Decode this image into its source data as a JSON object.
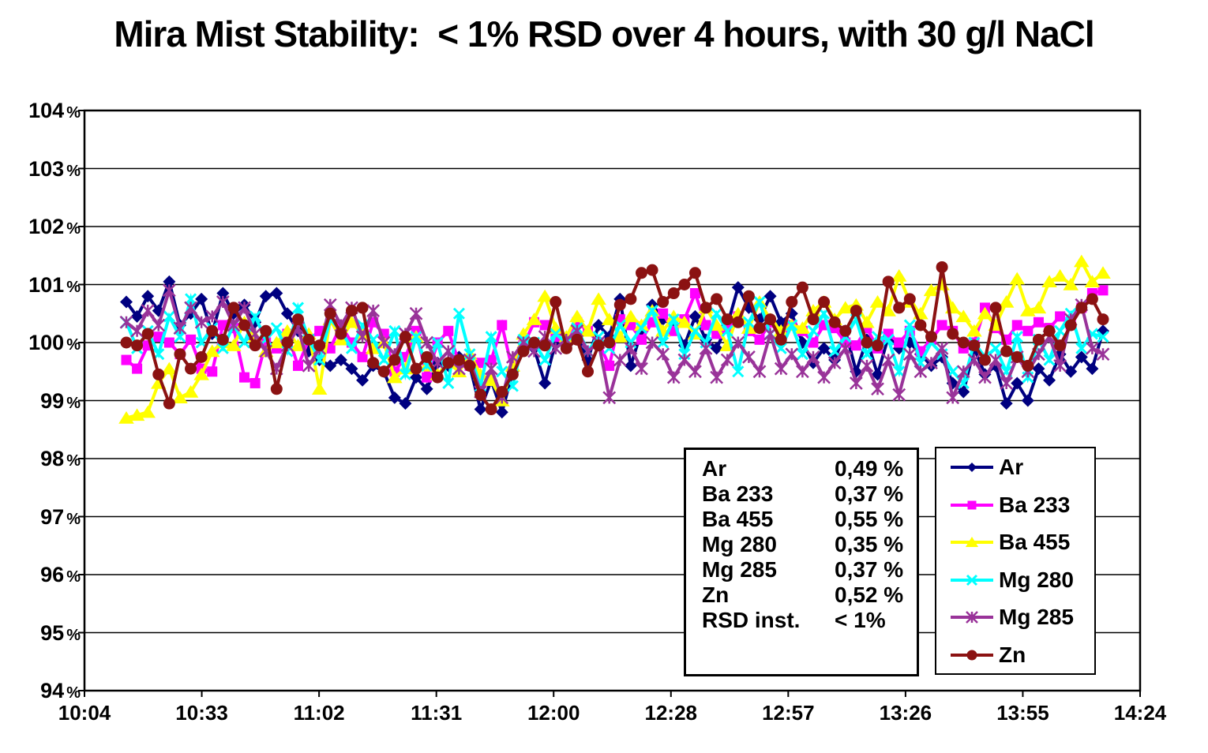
{
  "title": "Mira Mist Stability:  < 1% RSD over 4 hours, with 30 g/l NaCl",
  "stats_box": {
    "rows": [
      {
        "label": "Ar",
        "value": "0,49 %"
      },
      {
        "label": "Ba 233",
        "value": "0,37 %"
      },
      {
        "label": "Ba 455",
        "value": "0,55 %"
      },
      {
        "label": "Mg 280",
        "value": "0,35 %"
      },
      {
        "label": "Mg 285",
        "value": "0,37 %"
      },
      {
        "label": "Zn",
        "value": "0,52 %"
      },
      {
        "label": "RSD inst.",
        "value": "< 1%"
      }
    ]
  },
  "legend": {
    "items": [
      "Ar",
      "Ba 233",
      "Ba 455",
      "Mg 280",
      "Mg 285",
      "Zn"
    ]
  },
  "chart_data": {
    "type": "line",
    "title": "Mira Mist Stability:  < 1% RSD over 4 hours, with 30 g/l NaCl",
    "xlabel": "",
    "ylabel": "",
    "grid": true,
    "legend_position": "inset-right",
    "ylim": [
      94,
      104
    ],
    "y_axis": {
      "unit": "%",
      "tick_labels": [
        "104 %",
        "103 %",
        "102 %",
        "101 %",
        "100 %",
        "99 %",
        "98 %",
        "97 %",
        "96 %",
        "95 %",
        "94 %"
      ]
    },
    "x_axis": {
      "tick_labels": [
        "10:04",
        "10:33",
        "11:02",
        "11:31",
        "12:00",
        "12:28",
        "12:57",
        "13:26",
        "13:55",
        "14:24"
      ],
      "data_start": "10:13",
      "data_end": "14:15"
    },
    "series": [
      {
        "name": "Ar",
        "color": "#000080",
        "marker": "diamond",
        "rsd": "0,49 %",
        "values": [
          100.7,
          100.45,
          100.8,
          100.55,
          101.05,
          100.3,
          100.5,
          100.75,
          100.15,
          100.85,
          100.5,
          100.65,
          100.35,
          100.8,
          100.85,
          100.5,
          100.2,
          99.85,
          99.7,
          99.6,
          99.7,
          99.55,
          99.35,
          99.6,
          99.5,
          99.05,
          98.95,
          99.4,
          99.2,
          99.65,
          99.6,
          99.75,
          99.6,
          98.85,
          99.35,
          98.8,
          99.5,
          100.1,
          99.9,
          99.3,
          100.0,
          99.95,
          100.15,
          99.7,
          100.3,
          100.1,
          100.75,
          99.6,
          100.2,
          100.65,
          100.4,
          100.3,
          99.95,
          100.45,
          100.05,
          99.9,
          100.3,
          100.95,
          100.6,
          100.4,
          100.8,
          100.35,
          100.5,
          100.0,
          99.65,
          99.9,
          99.7,
          100.2,
          99.5,
          100.05,
          99.45,
          100.1,
          99.9,
          100.0,
          99.8,
          99.6,
          99.75,
          99.3,
          99.15,
          99.9,
          99.45,
          99.6,
          98.95,
          99.3,
          99.0,
          99.55,
          99.35,
          99.8,
          99.5,
          99.75,
          99.55,
          100.2
        ]
      },
      {
        "name": "Ba 233",
        "color": "#FF00FF",
        "marker": "square",
        "rsd": "0,37 %",
        "values": [
          99.7,
          99.55,
          99.95,
          100.1,
          100.0,
          99.8,
          100.05,
          99.55,
          99.5,
          100.3,
          100.25,
          99.4,
          99.3,
          100.0,
          99.9,
          100.15,
          99.6,
          100.05,
          100.2,
          99.9,
          100.3,
          100.0,
          99.75,
          100.35,
          100.15,
          99.5,
          99.75,
          100.2,
          99.4,
          100.0,
          100.2,
          99.65,
          99.6,
          99.65,
          99.7,
          100.3,
          99.5,
          99.95,
          100.35,
          100.3,
          100.1,
          99.95,
          100.35,
          100.2,
          100.0,
          99.6,
          100.4,
          100.3,
          100.05,
          100.35,
          100.5,
          100.2,
          100.4,
          100.85,
          100.3,
          100.15,
          100.25,
          100.45,
          100.2,
          100.05,
          100.35,
          100.1,
          100.3,
          100.2,
          100.0,
          100.3,
          100.25,
          100.0,
          99.95,
          100.25,
          99.9,
          100.15,
          100.0,
          100.2,
          99.85,
          100.05,
          100.3,
          100.2,
          99.9,
          100.0,
          100.6,
          100.25,
          100.05,
          100.3,
          100.2,
          100.35,
          100.25,
          100.45,
          100.3,
          100.6,
          100.85,
          100.9
        ]
      },
      {
        "name": "Ba 455",
        "color": "#FFFF00",
        "marker": "triangle",
        "rsd": "0,55 %",
        "values": [
          98.7,
          98.75,
          98.8,
          99.3,
          99.55,
          99.05,
          99.15,
          99.45,
          99.85,
          100.0,
          99.95,
          100.35,
          100.1,
          99.85,
          100.0,
          100.2,
          99.95,
          100.15,
          99.2,
          100.4,
          100.05,
          100.35,
          100.15,
          99.9,
          100.0,
          99.4,
          99.55,
          100.1,
          99.6,
          99.45,
          99.65,
          99.5,
          99.8,
          99.45,
          99.35,
          99.0,
          99.6,
          100.15,
          100.4,
          100.8,
          100.25,
          100.1,
          100.45,
          100.2,
          100.75,
          100.4,
          100.1,
          100.45,
          100.3,
          100.55,
          100.2,
          100.45,
          100.35,
          100.15,
          100.6,
          100.3,
          99.95,
          100.5,
          100.25,
          100.7,
          100.4,
          100.2,
          100.3,
          100.25,
          100.55,
          100.7,
          100.4,
          100.6,
          100.65,
          100.35,
          100.7,
          100.55,
          101.15,
          100.7,
          100.5,
          100.9,
          101.0,
          100.6,
          100.45,
          100.2,
          100.5,
          100.3,
          100.7,
          101.1,
          100.55,
          100.6,
          101.05,
          101.15,
          101.0,
          101.4,
          101.05,
          101.2
        ]
      },
      {
        "name": "Mg 280",
        "color": "#00FFFF",
        "marker": "x",
        "rsd": "0,35 %",
        "values": [
          100.35,
          99.9,
          100.2,
          99.8,
          100.45,
          100.1,
          100.75,
          100.0,
          100.25,
          99.9,
          100.3,
          100.0,
          100.45,
          100.05,
          100.25,
          99.85,
          100.6,
          100.05,
          99.7,
          100.4,
          100.2,
          99.9,
          100.3,
          100.05,
          99.7,
          100.2,
          99.45,
          100.1,
          99.6,
          100.0,
          99.3,
          100.5,
          99.8,
          99.25,
          100.1,
          99.5,
          99.25,
          100.05,
          100.0,
          99.7,
          100.15,
          100.0,
          100.25,
          99.85,
          100.1,
          99.9,
          100.3,
          100.0,
          100.25,
          100.55,
          100.0,
          100.4,
          99.8,
          100.2,
          100.0,
          100.5,
          100.2,
          99.5,
          100.35,
          100.7,
          100.15,
          99.9,
          100.3,
          99.8,
          100.2,
          100.5,
          99.85,
          100.1,
          100.4,
          99.8,
          100.1,
          100.05,
          99.5,
          100.3,
          99.65,
          100.0,
          99.8,
          99.5,
          99.3,
          100.0,
          99.75,
          99.9,
          99.5,
          100.1,
          99.4,
          100.05,
          99.7,
          100.2,
          100.5,
          99.9,
          100.15,
          100.1
        ]
      },
      {
        "name": "Mg 285",
        "color": "#993399",
        "marker": "star",
        "rsd": "0,37 %",
        "values": [
          100.35,
          100.2,
          100.55,
          100.3,
          100.9,
          100.25,
          100.6,
          100.35,
          100.45,
          100.7,
          100.3,
          100.6,
          100.15,
          99.85,
          99.55,
          99.95,
          100.25,
          99.6,
          99.9,
          100.65,
          100.3,
          100.6,
          100.1,
          100.55,
          100.0,
          99.8,
          100.15,
          100.5,
          100.0,
          99.65,
          99.85,
          99.55,
          99.7,
          99.15,
          99.55,
          99.05,
          99.75,
          100.0,
          99.85,
          100.1,
          99.9,
          100.05,
          100.2,
          99.85,
          100.0,
          99.05,
          99.7,
          99.9,
          99.55,
          100.0,
          99.8,
          99.4,
          99.7,
          99.5,
          99.9,
          99.4,
          99.7,
          100.0,
          99.75,
          99.5,
          100.15,
          99.55,
          99.8,
          99.5,
          99.75,
          99.4,
          99.65,
          99.9,
          99.3,
          99.6,
          99.2,
          99.7,
          99.1,
          99.8,
          99.5,
          99.65,
          99.9,
          99.05,
          99.5,
          99.7,
          99.4,
          99.7,
          99.3,
          99.75,
          99.5,
          99.8,
          100.1,
          99.6,
          100.4,
          100.65,
          99.9,
          99.8
        ]
      },
      {
        "name": "Zn",
        "color": "#8B1212",
        "marker": "circle",
        "rsd": "0,52 %",
        "values": [
          100.0,
          99.95,
          100.15,
          99.45,
          98.95,
          99.8,
          99.55,
          99.75,
          100.2,
          100.05,
          100.6,
          100.3,
          99.95,
          100.2,
          99.2,
          100.0,
          100.4,
          100.05,
          99.95,
          100.5,
          100.15,
          100.55,
          100.6,
          99.65,
          99.5,
          99.7,
          100.1,
          99.55,
          99.75,
          99.4,
          99.65,
          99.7,
          99.6,
          99.1,
          98.85,
          99.15,
          99.45,
          99.85,
          100.0,
          99.95,
          100.7,
          99.9,
          100.05,
          99.5,
          99.95,
          100.0,
          100.65,
          100.75,
          101.2,
          101.25,
          100.7,
          100.85,
          101.0,
          101.2,
          100.6,
          100.75,
          100.4,
          100.35,
          100.8,
          100.25,
          100.4,
          100.05,
          100.7,
          100.95,
          100.4,
          100.7,
          100.35,
          100.2,
          100.55,
          100.0,
          99.95,
          101.05,
          100.6,
          100.75,
          100.3,
          100.1,
          101.3,
          100.15,
          100.0,
          99.95,
          99.7,
          100.6,
          99.85,
          99.75,
          99.6,
          100.05,
          100.2,
          99.95,
          100.3,
          100.6,
          100.75,
          100.4
        ]
      }
    ]
  }
}
